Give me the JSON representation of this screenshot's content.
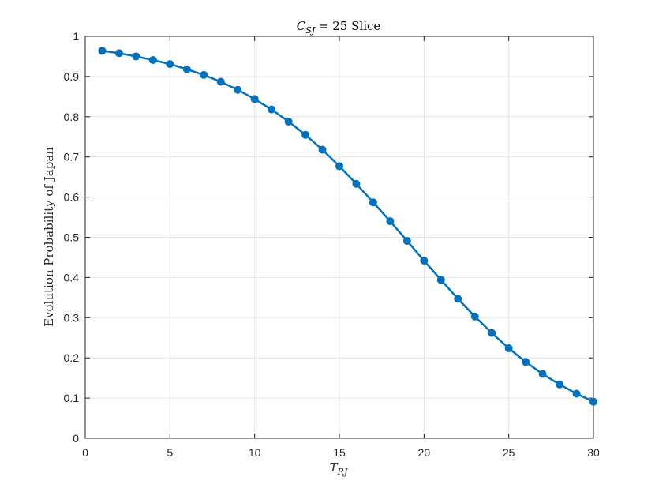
{
  "chart_data": {
    "type": "line",
    "title": {
      "main": "C",
      "subscript": "SJ",
      "rest": " = 25 Slice"
    },
    "xlabel": {
      "main": "T",
      "subscript": "RJ"
    },
    "ylabel": "Evolution Probability of Japan",
    "xlim": [
      0,
      30
    ],
    "ylim": [
      0,
      1
    ],
    "xticks": [
      "0",
      "5",
      "10",
      "15",
      "20",
      "25",
      "30"
    ],
    "yticks": [
      "0",
      "0.1",
      "0.2",
      "0.3",
      "0.4",
      "0.5",
      "0.6",
      "0.7",
      "0.8",
      "0.9",
      "1"
    ],
    "grid": true,
    "color": "#0072bd",
    "x": [
      1,
      2,
      3,
      4,
      5,
      6,
      7,
      8,
      9,
      10,
      11,
      12,
      13,
      14,
      15,
      16,
      17,
      18,
      19,
      20,
      21,
      22,
      23,
      24,
      25,
      26,
      27,
      28,
      29,
      30
    ],
    "y": [
      0.964,
      0.958,
      0.95,
      0.941,
      0.931,
      0.918,
      0.904,
      0.887,
      0.867,
      0.844,
      0.818,
      0.788,
      0.755,
      0.718,
      0.677,
      0.633,
      0.587,
      0.54,
      0.491,
      0.442,
      0.394,
      0.347,
      0.303,
      0.262,
      0.224,
      0.19,
      0.16,
      0.134,
      0.111,
      0.091
    ]
  }
}
